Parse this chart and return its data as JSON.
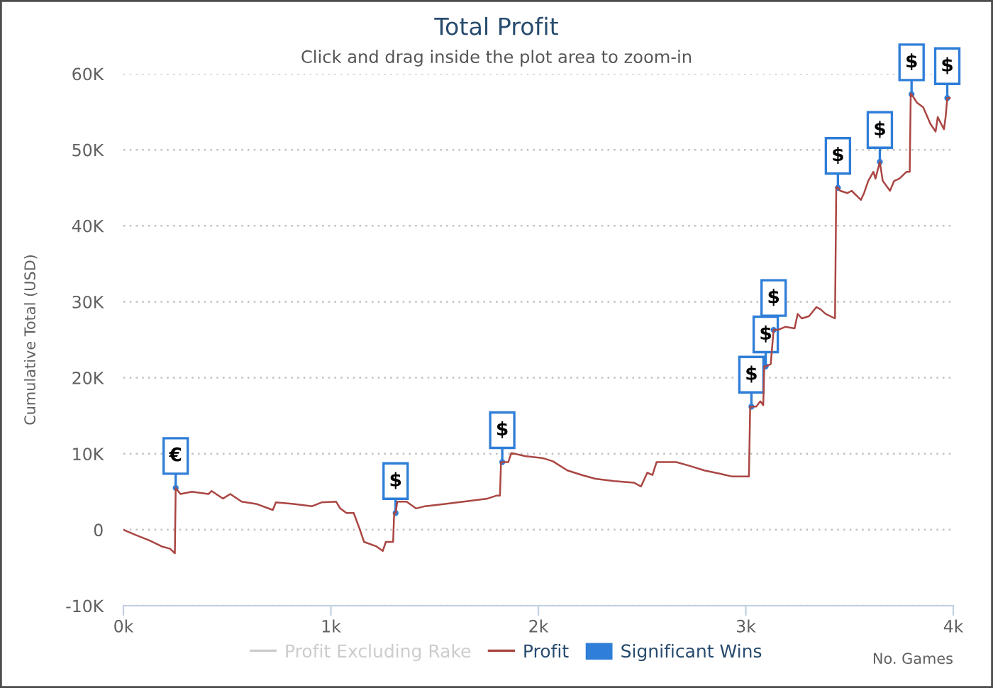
{
  "chart_data": {
    "type": "line",
    "title": "Total Profit",
    "subtitle": "Click and drag inside the plot area to zoom-in",
    "xlabel": "No. Games",
    "ylabel": "Cumulative Total (USD)",
    "xlim": [
      0,
      4000
    ],
    "xticks": [
      {
        "value": 0,
        "label": "0k"
      },
      {
        "value": 1000,
        "label": "1k"
      },
      {
        "value": 2000,
        "label": "2k"
      },
      {
        "value": 3000,
        "label": "3k"
      },
      {
        "value": 4000,
        "label": "4k"
      }
    ],
    "ylim": [
      -10000,
      60000
    ],
    "yticks": [
      {
        "value": -10000,
        "label": "-10K"
      },
      0,
      {
        "value": 10000,
        "label": "10K"
      },
      {
        "value": 20000,
        "label": "20K"
      },
      {
        "value": 30000,
        "label": "30K"
      },
      {
        "value": 40000,
        "label": "40K"
      },
      {
        "value": 50000,
        "label": "50K"
      },
      {
        "value": 60000,
        "label": "60K"
      }
    ],
    "grid": "y",
    "legend": "bottom",
    "series": [
      {
        "name": "Profit Excluding Rake",
        "color": "#cccccc"
      },
      {
        "name": "Profit",
        "color": "#aa4643",
        "x": [
          0,
          60,
          125,
          185,
          225,
          248,
          252,
          275,
          330,
          410,
          425,
          480,
          515,
          570,
          640,
          720,
          735,
          820,
          910,
          955,
          1025,
          1045,
          1075,
          1110,
          1140,
          1160,
          1220,
          1250,
          1265,
          1300,
          1305,
          1312,
          1320,
          1365,
          1410,
          1455,
          1550,
          1640,
          1755,
          1800,
          1815,
          1820,
          1826,
          1855,
          1870,
          1935,
          2025,
          2070,
          2140,
          2210,
          2275,
          2365,
          2460,
          2495,
          2525,
          2550,
          2570,
          2665,
          2730,
          2800,
          2870,
          2935,
          3015,
          3021,
          3027,
          3050,
          3070,
          3084,
          3089,
          3096,
          3120,
          3125,
          3134,
          3155,
          3190,
          3235,
          3250,
          3270,
          3305,
          3340,
          3360,
          3385,
          3430,
          3436,
          3444,
          3455,
          3490,
          3510,
          3555,
          3570,
          3590,
          3615,
          3625,
          3646,
          3660,
          3695,
          3715,
          3740,
          3775,
          3790,
          3795,
          3799,
          3825,
          3855,
          3890,
          3915,
          3925,
          3955,
          3963,
          3971,
          3983
        ],
        "values": [
          0,
          -700,
          -1400,
          -2200,
          -2500,
          -3100,
          5500,
          4700,
          5000,
          4700,
          5100,
          4100,
          4700,
          3700,
          3400,
          2600,
          3600,
          3400,
          3100,
          3600,
          3700,
          2800,
          2200,
          2200,
          0,
          -1600,
          -2200,
          -2800,
          -1600,
          -1600,
          2200,
          2200,
          3700,
          3700,
          2800,
          3100,
          3400,
          3700,
          4100,
          4500,
          4500,
          8900,
          8900,
          8900,
          10100,
          9700,
          9400,
          9000,
          7800,
          7200,
          6700,
          6400,
          6200,
          5700,
          7500,
          7200,
          8900,
          8900,
          8400,
          7800,
          7400,
          7000,
          7000,
          16200,
          16200,
          16200,
          16900,
          16400,
          21500,
          21500,
          21800,
          23400,
          26300,
          26300,
          26700,
          26500,
          28400,
          27800,
          28100,
          29300,
          29000,
          28400,
          27800,
          45100,
          45000,
          44600,
          44300,
          44600,
          43400,
          44300,
          45900,
          47100,
          46200,
          48400,
          45900,
          44600,
          45900,
          46200,
          47100,
          47100,
          57400,
          57300,
          56200,
          55600,
          53400,
          52400,
          54300,
          52700,
          54300,
          56800,
          56800
        ]
      },
      {
        "name": "Significant Wins",
        "type": "scatter",
        "color": "#2f7ed8",
        "x": [
          252,
          1312,
          1826,
          3027,
          3096,
          3134,
          3444,
          3646,
          3799,
          3971
        ],
        "values": [
          5500,
          2200,
          8900,
          16200,
          21500,
          26300,
          45000,
          48400,
          57300,
          56800
        ],
        "value_labels": [
          "€",
          "$",
          "$",
          "$",
          "$",
          "$",
          "$",
          "$",
          "$",
          "$"
        ]
      }
    ]
  }
}
